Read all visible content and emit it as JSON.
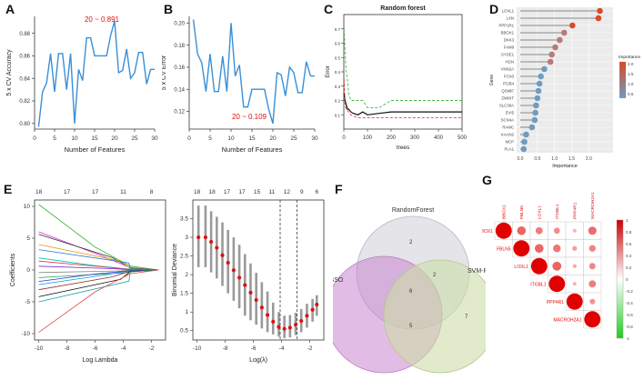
{
  "panel_labels": [
    "A",
    "B",
    "C",
    "D",
    "E",
    "F",
    "G"
  ],
  "chart_data": [
    {
      "id": "A",
      "type": "line",
      "xlabel": "Number of Features",
      "ylabel": "5 x CV Accuracy",
      "xlim": [
        0,
        30
      ],
      "ylim": [
        0.795,
        0.895
      ],
      "xticks": [
        0,
        5,
        10,
        15,
        20,
        25,
        30
      ],
      "yticks": [
        0.8,
        0.82,
        0.84,
        0.86,
        0.88
      ],
      "ytick_labels": [
        "0.80",
        "0.82",
        "0.84",
        "0.86",
        "0.88"
      ],
      "x": [
        1,
        2,
        3,
        4,
        5,
        6,
        7,
        8,
        9,
        10,
        11,
        12,
        13,
        14,
        15,
        16,
        17,
        18,
        19,
        20,
        21,
        22,
        23,
        24,
        25,
        26,
        27,
        28,
        29,
        30
      ],
      "values": [
        0.797,
        0.828,
        0.836,
        0.862,
        0.828,
        0.862,
        0.862,
        0.83,
        0.862,
        0.8,
        0.848,
        0.838,
        0.876,
        0.876,
        0.86,
        0.86,
        0.86,
        0.86,
        0.878,
        0.891,
        0.845,
        0.847,
        0.866,
        0.84,
        0.845,
        0.863,
        0.863,
        0.835,
        0.848,
        0.848
      ],
      "color": "#3a8fd6",
      "annotation": "20 ~ 0.891"
    },
    {
      "id": "B",
      "type": "line",
      "xlabel": "Number of Features",
      "ylabel": "5 x CV Error",
      "xlim": [
        0,
        30
      ],
      "ylim": [
        0.104,
        0.206
      ],
      "xticks": [
        0,
        5,
        10,
        15,
        20,
        25,
        30
      ],
      "yticks": [
        0.12,
        0.14,
        0.16,
        0.18,
        0.2
      ],
      "ytick_labels": [
        "0.12",
        "0.14",
        "0.16",
        "0.18",
        "0.20"
      ],
      "x": [
        1,
        2,
        3,
        4,
        5,
        6,
        7,
        8,
        9,
        10,
        11,
        12,
        13,
        14,
        15,
        16,
        17,
        18,
        19,
        20,
        21,
        22,
        23,
        24,
        25,
        26,
        27,
        28,
        29,
        30
      ],
      "values": [
        0.203,
        0.172,
        0.164,
        0.138,
        0.172,
        0.138,
        0.138,
        0.17,
        0.138,
        0.2,
        0.152,
        0.162,
        0.124,
        0.124,
        0.14,
        0.14,
        0.14,
        0.14,
        0.122,
        0.109,
        0.155,
        0.153,
        0.134,
        0.16,
        0.155,
        0.137,
        0.137,
        0.165,
        0.152,
        0.152
      ],
      "color": "#3a8fd6",
      "annotation": "20 ~ 0.109"
    },
    {
      "id": "C",
      "type": "line",
      "title": "Random forest",
      "xlabel": "trees",
      "ylabel": "Error",
      "xlim": [
        0,
        500
      ],
      "ylim": [
        0,
        0.8
      ],
      "xticks": [
        0,
        100,
        200,
        300,
        400,
        500
      ],
      "yticks": [
        0.1,
        0.2,
        0.3,
        0.4,
        0.5,
        0.6,
        0.7
      ],
      "ytick_labels": [
        "0.1",
        "0.2",
        "0.3",
        "0.4",
        "0.5",
        "0.6",
        "0.7"
      ],
      "series": [
        {
          "color": "#111111",
          "x": [
            1,
            5,
            10,
            15,
            20,
            30,
            40,
            60,
            80,
            100,
            150,
            200,
            300,
            400,
            500
          ],
          "values": [
            0.25,
            0.2,
            0.17,
            0.14,
            0.14,
            0.12,
            0.11,
            0.1,
            0.12,
            0.1,
            0.11,
            0.12,
            0.12,
            0.12,
            0.12
          ]
        },
        {
          "color": "#e04040",
          "x": [
            1,
            5,
            10,
            15,
            20,
            30,
            40,
            60,
            80,
            100,
            150,
            200,
            300,
            400,
            500
          ],
          "values": [
            0.35,
            0.18,
            0.14,
            0.13,
            0.12,
            0.1,
            0.09,
            0.08,
            0.08,
            0.08,
            0.08,
            0.08,
            0.08,
            0.08,
            0.08
          ]
        },
        {
          "color": "#44bb44",
          "x": [
            1,
            5,
            10,
            15,
            20,
            30,
            40,
            60,
            80,
            100,
            150,
            200,
            300,
            400,
            500
          ],
          "values": [
            0.7,
            0.55,
            0.4,
            0.35,
            0.25,
            0.2,
            0.2,
            0.2,
            0.2,
            0.15,
            0.15,
            0.2,
            0.2,
            0.2,
            0.2
          ]
        }
      ]
    },
    {
      "id": "D",
      "type": "bar",
      "xlabel": "Importance",
      "ylabel": "Gene",
      "xlim": [
        0,
        2.6
      ],
      "xticks": [
        0.0,
        0.5,
        1.0,
        1.5,
        2.0
      ],
      "xtick_labels": [
        "0.0",
        "0.5",
        "1.0",
        "1.5",
        "2.0"
      ],
      "categories": [
        "LOXL1",
        "LXN",
        "PPP1R1",
        "BBOX1",
        "DKK3",
        "FAM8",
        "SYDE1",
        "HGN",
        "VNN2A",
        "FCN3",
        "ITGB4",
        "QSMIF",
        "ZWINT",
        "SLC39A",
        "EVI5",
        "SCN4A",
        "RAMC",
        "KAAN2",
        "MCP",
        "PLA1"
      ],
      "values": [
        2.32,
        2.28,
        1.52,
        1.28,
        1.15,
        1.02,
        0.92,
        0.88,
        0.7,
        0.6,
        0.56,
        0.53,
        0.5,
        0.46,
        0.44,
        0.42,
        0.34,
        0.17,
        0.12,
        0.1
      ],
      "legend_title": "Importance",
      "legend_ticks": [
        "2.0",
        "1.5",
        "1.0",
        "0.5"
      ],
      "colorscale": [
        "#d94a2a",
        "#6f9cbf"
      ]
    },
    {
      "id": "E1",
      "type": "line",
      "xlabel": "Log Lambda",
      "ylabel": "Coefficients",
      "xlim": [
        -10.3,
        -1
      ],
      "ylim": [
        -11,
        11
      ],
      "xticks": [
        -10,
        -8,
        -6,
        -4,
        -2
      ],
      "xtick_labels": [
        "-10",
        "-8",
        "-6",
        "-4",
        "-2"
      ],
      "yticks": [
        -10,
        -5,
        0,
        5,
        10
      ],
      "ytick_labels": [
        "-10",
        "-5",
        "0",
        "5",
        "10"
      ],
      "top_ticks": [
        "18",
        "17",
        "17",
        "11",
        "8"
      ],
      "series": [
        {
          "color": "#2ab02a",
          "values": [
            10.3,
            0
          ]
        },
        {
          "color": "#d92cd9",
          "values": [
            6.0,
            0
          ]
        },
        {
          "color": "#333333",
          "values": [
            5.6,
            0
          ]
        },
        {
          "color": "#e0a000",
          "values": [
            4.0,
            0
          ]
        },
        {
          "color": "#2a7ad9",
          "values": [
            3.2,
            0
          ]
        },
        {
          "color": "#00c0c0",
          "values": [
            1.9,
            0
          ]
        },
        {
          "color": "#d93a3a",
          "values": [
            1.4,
            0
          ]
        },
        {
          "color": "#7a2ad9",
          "values": [
            0.6,
            0
          ]
        },
        {
          "color": "#888888",
          "values": [
            -0.4,
            0
          ]
        },
        {
          "color": "#1aa05a",
          "values": [
            -1.2,
            0
          ]
        },
        {
          "color": "#2a3ad9",
          "values": [
            -1.8,
            0
          ]
        },
        {
          "color": "#00a0e0",
          "values": [
            -2.3,
            0
          ]
        },
        {
          "color": "#a02a2a",
          "values": [
            -3.1,
            0
          ]
        },
        {
          "color": "#0a0a0a",
          "values": [
            -4.2,
            0
          ]
        },
        {
          "color": "#1aa0a0",
          "values": [
            -5.0,
            0
          ]
        },
        {
          "color": "#e04a4a",
          "values": [
            -9.8,
            0
          ]
        }
      ]
    },
    {
      "id": "E2",
      "type": "scatter",
      "xlabel": "Log(λ)",
      "ylabel": "Binomial Deviance",
      "xlim": [
        -10.3,
        -1
      ],
      "ylim": [
        0.25,
        4.0
      ],
      "xticks": [
        -10,
        -8,
        -6,
        -4,
        -2
      ],
      "xtick_labels": [
        "-10",
        "-8",
        "-6",
        "-4",
        "-2"
      ],
      "yticks": [
        0.5,
        1,
        1.5,
        2,
        2.5,
        3,
        3.5
      ],
      "ytick_labels": [
        "0.5",
        "1",
        "1.5",
        "2",
        "2.5",
        "3",
        "3.5"
      ],
      "top_ticks": [
        "18",
        "18",
        "17",
        "17",
        "15",
        "11",
        "12",
        "9",
        "6"
      ],
      "vlines": [
        -4.1,
        -2.9
      ],
      "x": [
        -9.9,
        -9.4,
        -9.0,
        -8.6,
        -8.2,
        -7.8,
        -7.4,
        -7.0,
        -6.6,
        -6.2,
        -5.8,
        -5.4,
        -5.0,
        -4.6,
        -4.2,
        -3.8,
        -3.4,
        -3.0,
        -2.6,
        -2.2,
        -1.8,
        -1.5
      ],
      "values": [
        3.0,
        3.0,
        2.88,
        2.72,
        2.52,
        2.32,
        2.12,
        1.92,
        1.72,
        1.52,
        1.32,
        1.12,
        0.92,
        0.74,
        0.6,
        0.55,
        0.58,
        0.66,
        0.76,
        0.9,
        1.06,
        1.2
      ],
      "upper": [
        3.85,
        3.85,
        3.7,
        3.55,
        3.4,
        3.2,
        3.0,
        2.8,
        2.55,
        2.3,
        2.05,
        1.8,
        1.55,
        1.25,
        1.0,
        0.9,
        0.92,
        0.98,
        1.08,
        1.22,
        1.35,
        1.45
      ],
      "lower": [
        2.2,
        2.2,
        2.06,
        1.9,
        1.7,
        1.5,
        1.3,
        1.1,
        0.9,
        0.78,
        0.66,
        0.56,
        0.46,
        0.4,
        0.34,
        0.3,
        0.32,
        0.38,
        0.46,
        0.58,
        0.74,
        0.9
      ],
      "color": "#dd1111"
    }
  ],
  "venn": {
    "sets": [
      "RandomForest",
      "LASSO",
      "SVM-REF"
    ],
    "regions": {
      "rf_only": "2",
      "rf_svm": "2",
      "center": "6",
      "lasso_svm": "5",
      "svm_only": "7"
    }
  },
  "corr": {
    "genes": [
      "BBOX1",
      "FBLN5",
      "LOXL1",
      "ITGBL1",
      "PPP4R1",
      "MACROH2A1"
    ],
    "legend_ticks": [
      "1",
      "0.8",
      "0.6",
      "0.4",
      "0.2",
      "0",
      "-0.2",
      "-0.4",
      "-0.6",
      "-0.8",
      "-1"
    ],
    "matrix": [
      [
        1.0,
        0.55,
        0.45,
        0.38,
        0.2,
        0.52
      ],
      [
        0,
        1.0,
        0.55,
        0.48,
        0.3,
        0.42
      ],
      [
        0,
        0,
        1.0,
        0.56,
        0.25,
        0.4
      ],
      [
        0,
        0,
        0,
        1.0,
        0.22,
        0.45
      ],
      [
        0,
        0,
        0,
        0,
        1.0,
        0.35
      ],
      [
        0,
        0,
        0,
        0,
        0,
        1.0
      ]
    ]
  }
}
